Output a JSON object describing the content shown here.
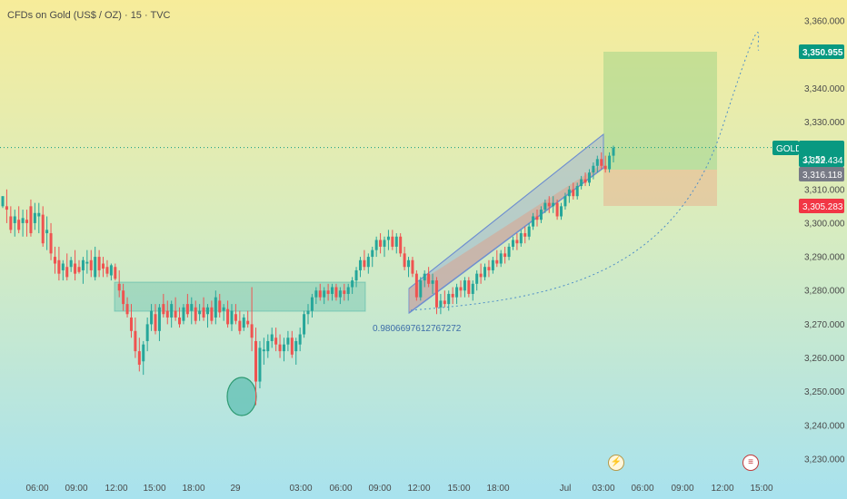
{
  "title": "CFDs on Gold (US$ / OZ) · 15 · TVC",
  "chart_data": {
    "type": "candlestick",
    "symbol": "GOLD",
    "price_axis": {
      "ylim": [
        3225,
        3365
      ],
      "ticks": [
        3230,
        3240,
        3250,
        3260,
        3270,
        3280,
        3290,
        3300,
        3310,
        3320,
        3330,
        3340,
        3350,
        3360
      ],
      "tick_labels": [
        "3,230.000",
        "3,240.000",
        "3,250.000",
        "3,260.000",
        "3,270.000",
        "3,280.000",
        "3,290.000",
        "3,300.000",
        "3,310.000",
        "3,320.000",
        "3,330.000",
        "3,340.000",
        "3,350.000",
        "3,360.000"
      ]
    },
    "time_axis": {
      "labels": [
        "06:00",
        "09:00",
        "12:00",
        "15:00",
        "18:00",
        "29",
        "03:00",
        "06:00",
        "09:00",
        "12:00",
        "15:00",
        "18:00",
        "Jul",
        "03:00",
        "06:00",
        "09:00",
        "12:00",
        "15:00"
      ]
    },
    "series": [
      {
        "candles": [
          [
            3305.0,
            3308.0,
            3304.5,
            3308.0
          ],
          [
            3305.0,
            3310.0,
            3300.0,
            3304.0
          ],
          [
            3302.0,
            3305.0,
            3297.0,
            3298.0
          ],
          [
            3300.0,
            3304.0,
            3296.0,
            3302.0
          ],
          [
            3301.0,
            3305.0,
            3297.0,
            3298.0
          ],
          [
            3300.0,
            3304.0,
            3296.0,
            3301.5
          ],
          [
            3301.0,
            3304.0,
            3296.0,
            3300.0
          ],
          [
            3305.0,
            3307.0,
            3296.0,
            3297.0
          ],
          [
            3300.0,
            3306.0,
            3298.0,
            3303.0
          ],
          [
            3302.0,
            3306.0,
            3297.0,
            3303.0
          ],
          [
            3302.5,
            3305.0,
            3293.0,
            3294.0
          ],
          [
            3297.0,
            3302.0,
            3292.0,
            3298.0
          ],
          [
            3297.0,
            3300.0,
            3289.0,
            3291.0
          ],
          [
            3290.0,
            3293.0,
            3285.0,
            3288.0
          ],
          [
            3289.0,
            3293.0,
            3283.0,
            3285.0
          ],
          [
            3286.0,
            3289.0,
            3283.0,
            3288.0
          ],
          [
            3287.0,
            3291.0,
            3283.0,
            3284.0
          ],
          [
            3287.0,
            3290.0,
            3285.5,
            3289.0
          ],
          [
            3288.0,
            3292.0,
            3283.0,
            3285.0
          ],
          [
            3287.0,
            3289.0,
            3285.0,
            3285.5
          ],
          [
            3286.0,
            3290.0,
            3282.0,
            3289.0
          ],
          [
            3288.0,
            3292.0,
            3285.0,
            3288.5
          ],
          [
            3289.0,
            3292.0,
            3284.0,
            3286.0
          ],
          [
            3284.0,
            3293.0,
            3283.0,
            3290.0
          ],
          [
            3290.0,
            3292.0,
            3284.0,
            3286.0
          ],
          [
            3288.0,
            3290.0,
            3284.0,
            3286.5
          ],
          [
            3287.0,
            3289.0,
            3284.0,
            3285.0
          ],
          [
            3284.5,
            3288.0,
            3283.0,
            3287.5
          ],
          [
            3287.0,
            3288.0,
            3283.0,
            3283.5
          ],
          [
            3282.0,
            3286.0,
            3278.0,
            3280.0
          ],
          [
            3280.0,
            3282.0,
            3274.0,
            3276.0
          ],
          [
            3276.0,
            3278.0,
            3272.0,
            3273.0
          ],
          [
            3272.0,
            3276.0,
            3266.0,
            3268.0
          ],
          [
            3268.0,
            3272.0,
            3260.0,
            3262.0
          ],
          [
            3262.0,
            3266.0,
            3256.0,
            3258.0
          ],
          [
            3259.0,
            3265.0,
            3255.0,
            3264.0
          ],
          [
            3265.0,
            3272.0,
            3262.0,
            3270.0
          ],
          [
            3270.0,
            3276.0,
            3268.0,
            3274.0
          ],
          [
            3273.0,
            3276.0,
            3267.0,
            3268.0
          ],
          [
            3268.0,
            3276.0,
            3265.0,
            3275.0
          ],
          [
            3276.0,
            3279.0,
            3272.0,
            3273.0
          ],
          [
            3274.0,
            3277.0,
            3270.0,
            3272.0
          ],
          [
            3272.0,
            3277.0,
            3269.0,
            3276.0
          ],
          [
            3274.0,
            3278.0,
            3271.0,
            3272.0
          ],
          [
            3272.0,
            3275.0,
            3269.0,
            3270.0
          ],
          [
            3271.0,
            3276.0,
            3270.0,
            3275.0
          ],
          [
            3276.0,
            3279.0,
            3272.0,
            3273.0
          ],
          [
            3274.0,
            3278.0,
            3270.0,
            3276.0
          ],
          [
            3275.0,
            3277.0,
            3270.0,
            3271.0
          ],
          [
            3273.0,
            3276.0,
            3271.0,
            3274.0
          ],
          [
            3275.0,
            3278.0,
            3271.0,
            3272.0
          ],
          [
            3273.0,
            3276.0,
            3269.0,
            3275.0
          ],
          [
            3275.0,
            3277.0,
            3270.0,
            3271.0
          ],
          [
            3272.0,
            3280.0,
            3270.0,
            3278.0
          ],
          [
            3277.0,
            3279.0,
            3272.0,
            3273.5
          ],
          [
            3274.0,
            3276.0,
            3271.0,
            3275.0
          ],
          [
            3274.5,
            3277.0,
            3269.0,
            3270.0
          ],
          [
            3270.0,
            3276.0,
            3268.0,
            3274.0
          ],
          [
            3273.0,
            3276.0,
            3270.0,
            3271.0
          ],
          [
            3271.0,
            3274.0,
            3267.0,
            3268.0
          ],
          [
            3269.0,
            3273.0,
            3268.0,
            3272.0
          ],
          [
            3271.0,
            3274.0,
            3269.0,
            3270.0
          ],
          [
            3270.0,
            3281.0,
            3262.0,
            3266.0
          ],
          [
            3265.0,
            3269.0,
            3246.0,
            3253.0
          ],
          [
            3253.0,
            3265.0,
            3251.0,
            3263.0
          ],
          [
            3262.0,
            3266.0,
            3258.0,
            3262.5
          ],
          [
            3262.0,
            3267.0,
            3260.0,
            3265.0
          ],
          [
            3265.0,
            3269.0,
            3263.0,
            3267.0
          ],
          [
            3266.0,
            3269.0,
            3262.0,
            3264.0
          ],
          [
            3264.0,
            3267.0,
            3260.0,
            3262.0
          ],
          [
            3262.0,
            3266.0,
            3259.0,
            3264.0
          ],
          [
            3264.0,
            3268.0,
            3262.0,
            3266.0
          ],
          [
            3266.0,
            3268.0,
            3260.0,
            3261.0
          ],
          [
            3262.0,
            3266.0,
            3258.0,
            3265.0
          ],
          [
            3264.0,
            3269.0,
            3262.0,
            3267.0
          ],
          [
            3267.0,
            3274.0,
            3266.0,
            3273.0
          ],
          [
            3273.0,
            3276.0,
            3270.0,
            3274.0
          ],
          [
            3274.0,
            3279.0,
            3272.0,
            3278.0
          ],
          [
            3278.0,
            3281.0,
            3276.0,
            3280.0
          ],
          [
            3280.0,
            3282.0,
            3277.0,
            3278.0
          ],
          [
            3278.0,
            3281.0,
            3276.0,
            3280.0
          ],
          [
            3280.0,
            3282.0,
            3277.0,
            3279.0
          ],
          [
            3279.0,
            3282.0,
            3277.0,
            3281.0
          ],
          [
            3281.0,
            3282.0,
            3277.0,
            3278.0
          ],
          [
            3278.0,
            3281.0,
            3276.0,
            3280.0
          ],
          [
            3280.0,
            3282.0,
            3277.0,
            3279.0
          ],
          [
            3279.0,
            3282.0,
            3277.0,
            3281.0
          ],
          [
            3281.0,
            3284.0,
            3279.0,
            3283.0
          ],
          [
            3283.0,
            3287.0,
            3281.0,
            3286.0
          ],
          [
            3286.0,
            3290.0,
            3284.0,
            3289.0
          ],
          [
            3289.0,
            3292.0,
            3286.0,
            3287.0
          ],
          [
            3287.0,
            3291.0,
            3285.0,
            3290.0
          ],
          [
            3290.0,
            3293.0,
            3287.0,
            3292.0
          ],
          [
            3292.0,
            3296.0,
            3290.0,
            3295.0
          ],
          [
            3295.0,
            3297.0,
            3291.0,
            3293.0
          ],
          [
            3293.0,
            3296.0,
            3290.0,
            3295.0
          ],
          [
            3295.0,
            3298.0,
            3292.0,
            3296.0
          ],
          [
            3296.0,
            3298.0,
            3292.0,
            3293.0
          ],
          [
            3293.0,
            3297.0,
            3291.0,
            3296.0
          ],
          [
            3296.0,
            3297.0,
            3290.0,
            3291.0
          ],
          [
            3291.0,
            3293.0,
            3286.0,
            3287.0
          ],
          [
            3287.0,
            3290.0,
            3284.0,
            3289.0
          ],
          [
            3289.0,
            3290.0,
            3284.0,
            3285.0
          ],
          [
            3285.0,
            3286.0,
            3277.0,
            3278.0
          ],
          [
            3278.0,
            3284.0,
            3277.0,
            3283.0
          ],
          [
            3283.0,
            3286.0,
            3281.0,
            3285.0
          ],
          [
            3285.0,
            3287.0,
            3281.0,
            3282.0
          ],
          [
            3282.0,
            3285.0,
            3279.0,
            3283.0
          ],
          [
            3283.0,
            3284.0,
            3273.0,
            3275.0
          ],
          [
            3275.0,
            3279.0,
            3273.0,
            3277.0
          ],
          [
            3277.0,
            3280.0,
            3275.0,
            3276.0
          ],
          [
            3276.0,
            3280.0,
            3274.0,
            3279.0
          ],
          [
            3279.0,
            3281.0,
            3276.0,
            3278.0
          ],
          [
            3278.0,
            3282.0,
            3276.0,
            3281.0
          ],
          [
            3281.0,
            3283.0,
            3278.0,
            3280.0
          ],
          [
            3280.0,
            3284.0,
            3278.0,
            3283.0
          ],
          [
            3283.0,
            3284.0,
            3278.0,
            3279.0
          ],
          [
            3279.0,
            3283.0,
            3277.0,
            3282.0
          ],
          [
            3282.0,
            3286.0,
            3280.0,
            3285.0
          ],
          [
            3285.0,
            3288.0,
            3282.0,
            3284.0
          ],
          [
            3284.0,
            3288.0,
            3283.0,
            3287.0
          ],
          [
            3287.0,
            3289.0,
            3284.0,
            3286.0
          ],
          [
            3286.0,
            3290.0,
            3285.0,
            3289.0
          ],
          [
            3289.0,
            3292.0,
            3287.0,
            3288.0
          ],
          [
            3288.0,
            3292.0,
            3287.0,
            3291.0
          ],
          [
            3291.0,
            3293.0,
            3288.0,
            3290.0
          ],
          [
            3290.0,
            3294.0,
            3289.0,
            3293.0
          ],
          [
            3293.0,
            3296.0,
            3292.0,
            3295.0
          ],
          [
            3295.0,
            3297.0,
            3292.0,
            3294.0
          ],
          [
            3294.0,
            3298.0,
            3293.0,
            3297.0
          ],
          [
            3297.0,
            3299.0,
            3294.0,
            3296.0
          ],
          [
            3296.0,
            3300.0,
            3295.0,
            3299.0
          ],
          [
            3299.0,
            3303.0,
            3298.0,
            3302.0
          ],
          [
            3302.0,
            3304.0,
            3299.0,
            3301.0
          ],
          [
            3301.0,
            3305.0,
            3300.0,
            3304.0
          ],
          [
            3304.0,
            3307.0,
            3303.0,
            3306.0
          ],
          [
            3306.0,
            3308.0,
            3303.0,
            3305.0
          ],
          [
            3305.0,
            3308.0,
            3303.0,
            3306.0
          ],
          [
            3306.0,
            3307.0,
            3301.0,
            3302.0
          ],
          [
            3302.0,
            3306.0,
            3301.0,
            3305.0
          ],
          [
            3305.0,
            3309.0,
            3304.0,
            3308.0
          ],
          [
            3308.0,
            3311.0,
            3306.0,
            3310.0
          ],
          [
            3310.0,
            3312.0,
            3307.0,
            3308.0
          ],
          [
            3308.0,
            3312.0,
            3307.0,
            3311.0
          ],
          [
            3311.0,
            3314.0,
            3310.0,
            3313.0
          ],
          [
            3313.0,
            3315.0,
            3311.0,
            3312.0
          ],
          [
            3312.0,
            3316.0,
            3311.0,
            3315.0
          ],
          [
            3315.0,
            3318.0,
            3313.0,
            3317.0
          ],
          [
            3317.0,
            3320.0,
            3315.0,
            3319.0
          ],
          [
            3319.0,
            3321.0,
            3316.0,
            3317.0
          ],
          [
            3317.0,
            3320.0,
            3315.0,
            3316.0
          ],
          [
            3316.0,
            3321.0,
            3315.0,
            3320.0
          ],
          [
            3320.0,
            3323.0,
            3318.0,
            3322.434
          ]
        ],
        "close": 3322.434
      }
    ],
    "price_labels": {
      "symbol_tag": "GOLD",
      "current_price": "3,322.434",
      "countdown": "11:59",
      "take_profit": "3,350.955",
      "entry": "3,316.118",
      "stop_loss": "3,305.283"
    },
    "annotations": {
      "curve_label": "0.9806697612767272"
    },
    "colors": {
      "up": "#26a69a",
      "down": "#ef5350",
      "accent_teal": "#089981",
      "take_profit_tag": "#089981",
      "entry_tag": "#787b86",
      "stop_loss_tag": "#f23645",
      "channel": "#6f8fd0"
    }
  }
}
